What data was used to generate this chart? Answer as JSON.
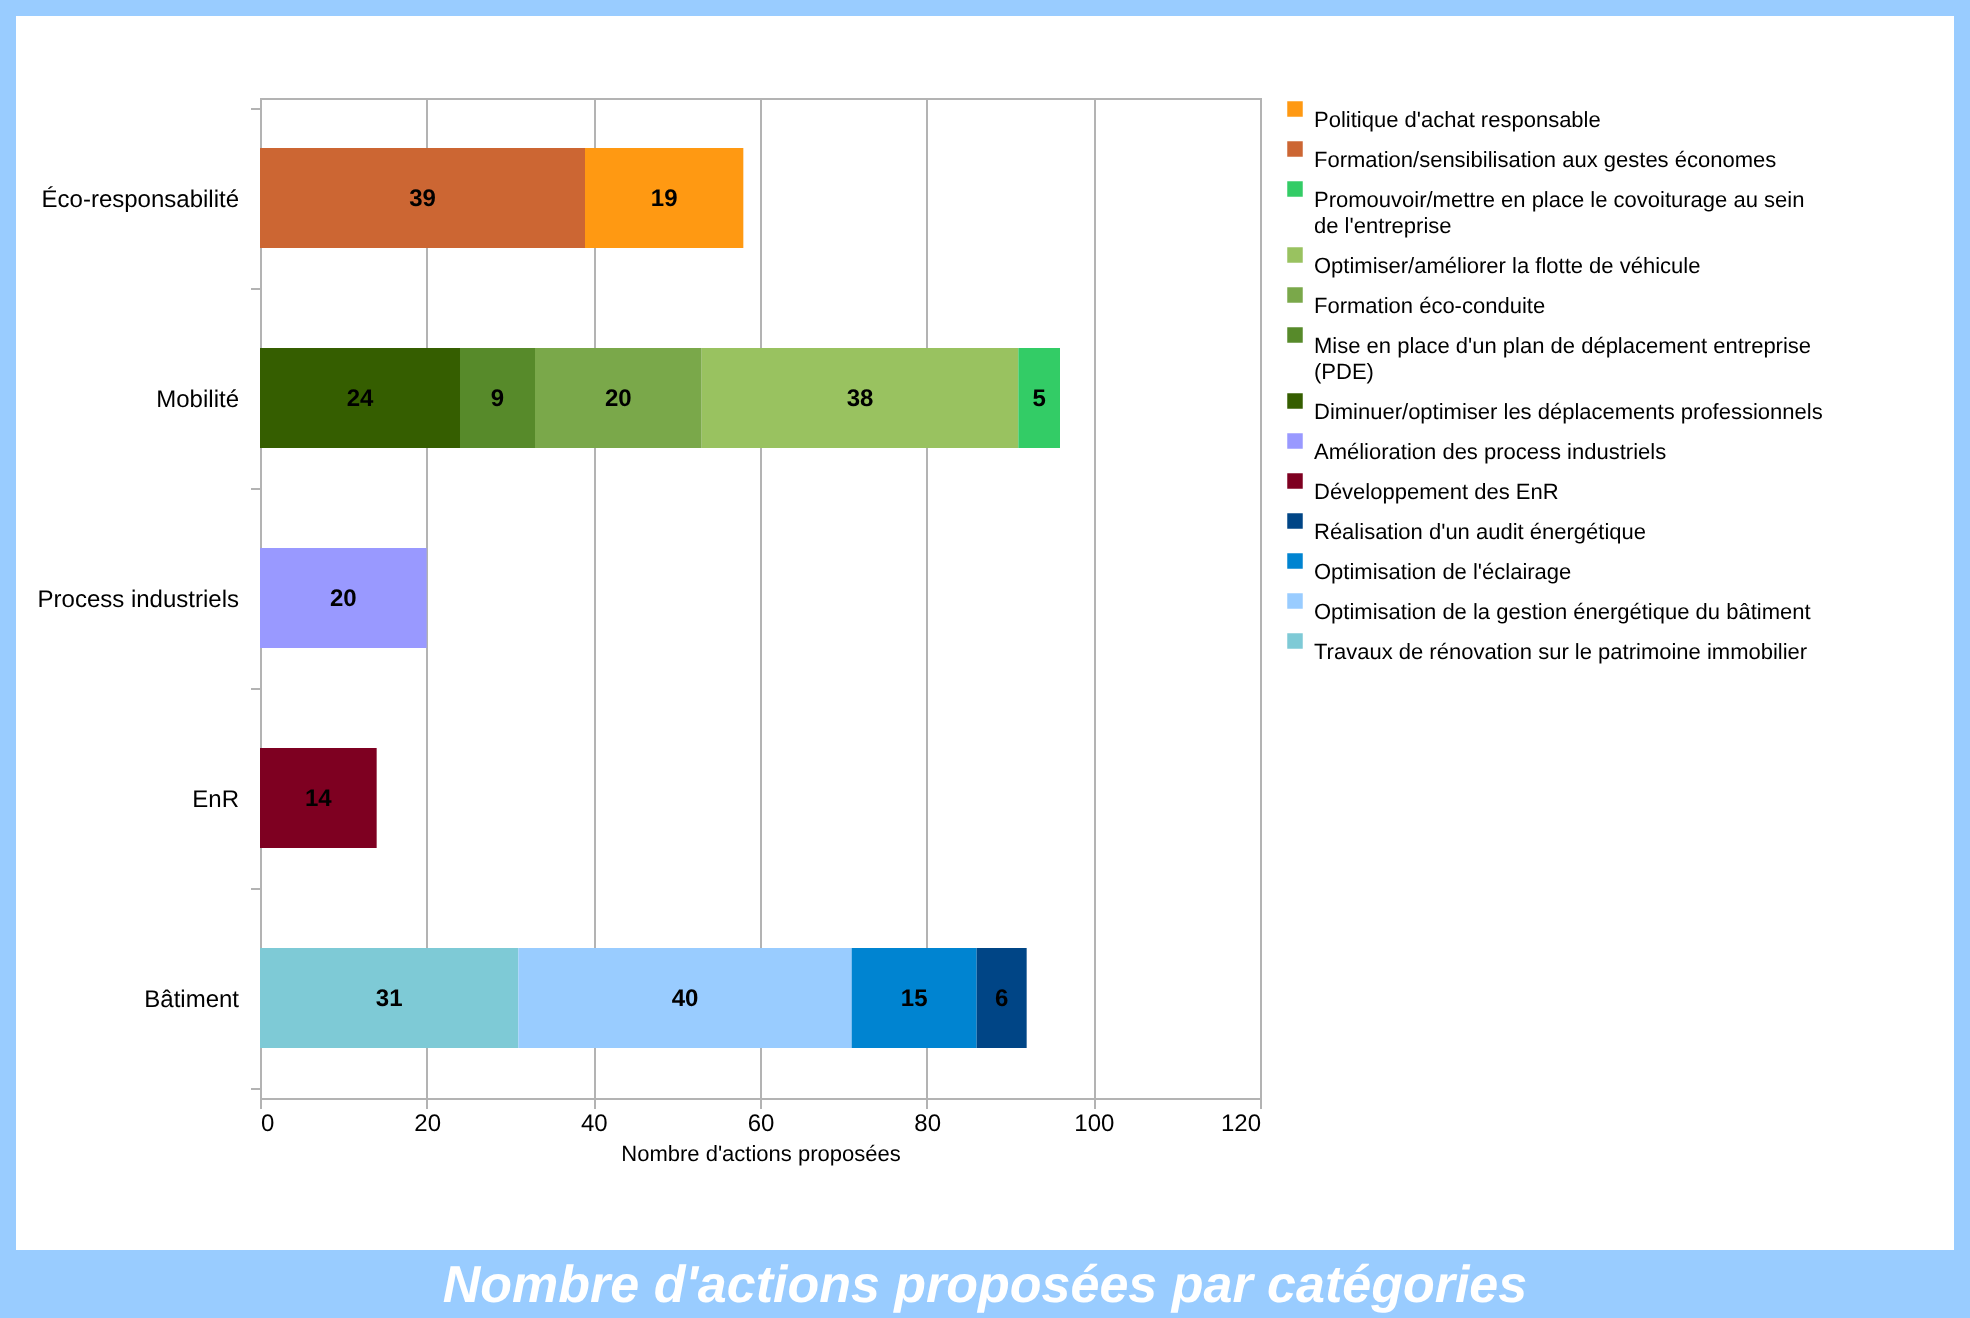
{
  "chart_data": {
    "type": "bar",
    "orientation": "horizontal",
    "stacked": true,
    "title": "Nombre d'actions proposées par catégories",
    "xlabel": "Nombre d'actions proposées",
    "categories": [
      "Éco-responsabilité",
      "Mobilité",
      "Process industriels",
      "EnR",
      "Bâtiment"
    ],
    "series": [
      {
        "name": "Travaux de rénovation sur le patrimoine immobilier",
        "color": "#7ecad6",
        "values": [
          null,
          null,
          null,
          null,
          31
        ]
      },
      {
        "name": "Optimisation de la gestion énergétique du bâtiment",
        "color": "#99ccff",
        "values": [
          null,
          null,
          null,
          null,
          40
        ]
      },
      {
        "name": "Optimisation de l'éclairage",
        "color": "#0084d1",
        "values": [
          null,
          null,
          null,
          null,
          15
        ]
      },
      {
        "name": "Réalisation d'un audit énergétique",
        "color": "#004586",
        "values": [
          null,
          null,
          null,
          null,
          6
        ]
      },
      {
        "name": "Développement des EnR",
        "color": "#7e0021",
        "values": [
          null,
          null,
          null,
          14,
          null
        ]
      },
      {
        "name": "Amélioration des process industriels",
        "color": "#9999ff",
        "values": [
          null,
          null,
          20,
          null,
          null
        ]
      },
      {
        "name": "Diminuer/optimiser les déplacements professionnels",
        "color": "#355e00",
        "values": [
          null,
          24,
          null,
          null,
          null
        ]
      },
      {
        "name": "Mise en place d'un plan de déplacement entreprise (PDE)",
        "color": "#578a2a",
        "values": [
          null,
          9,
          null,
          null,
          null
        ]
      },
      {
        "name": "Formation éco-conduite",
        "color": "#7aa84a",
        "values": [
          null,
          20,
          null,
          null,
          null
        ]
      },
      {
        "name": "Optimiser/améliorer la flotte de véhicule",
        "color": "#99c260",
        "values": [
          null,
          38,
          null,
          null,
          null
        ]
      },
      {
        "name": "Promouvoir/mettre en place le covoiturage au sein de l'entreprise",
        "color": "#33cc66",
        "values": [
          null,
          5,
          null,
          null,
          null
        ]
      },
      {
        "name": "Formation/sensibilisation aux gestes économes",
        "color": "#cc6633",
        "values": [
          39,
          null,
          null,
          null,
          null
        ]
      },
      {
        "name": "Politique d'achat responsable",
        "color": "#ff9912",
        "values": [
          19,
          null,
          null,
          null,
          null
        ]
      }
    ],
    "xlim": [
      0,
      120
    ],
    "xticks": [
      0,
      20,
      40,
      60,
      80,
      100,
      120
    ],
    "grid": "x",
    "legend": "right",
    "data_labels": true
  }
}
